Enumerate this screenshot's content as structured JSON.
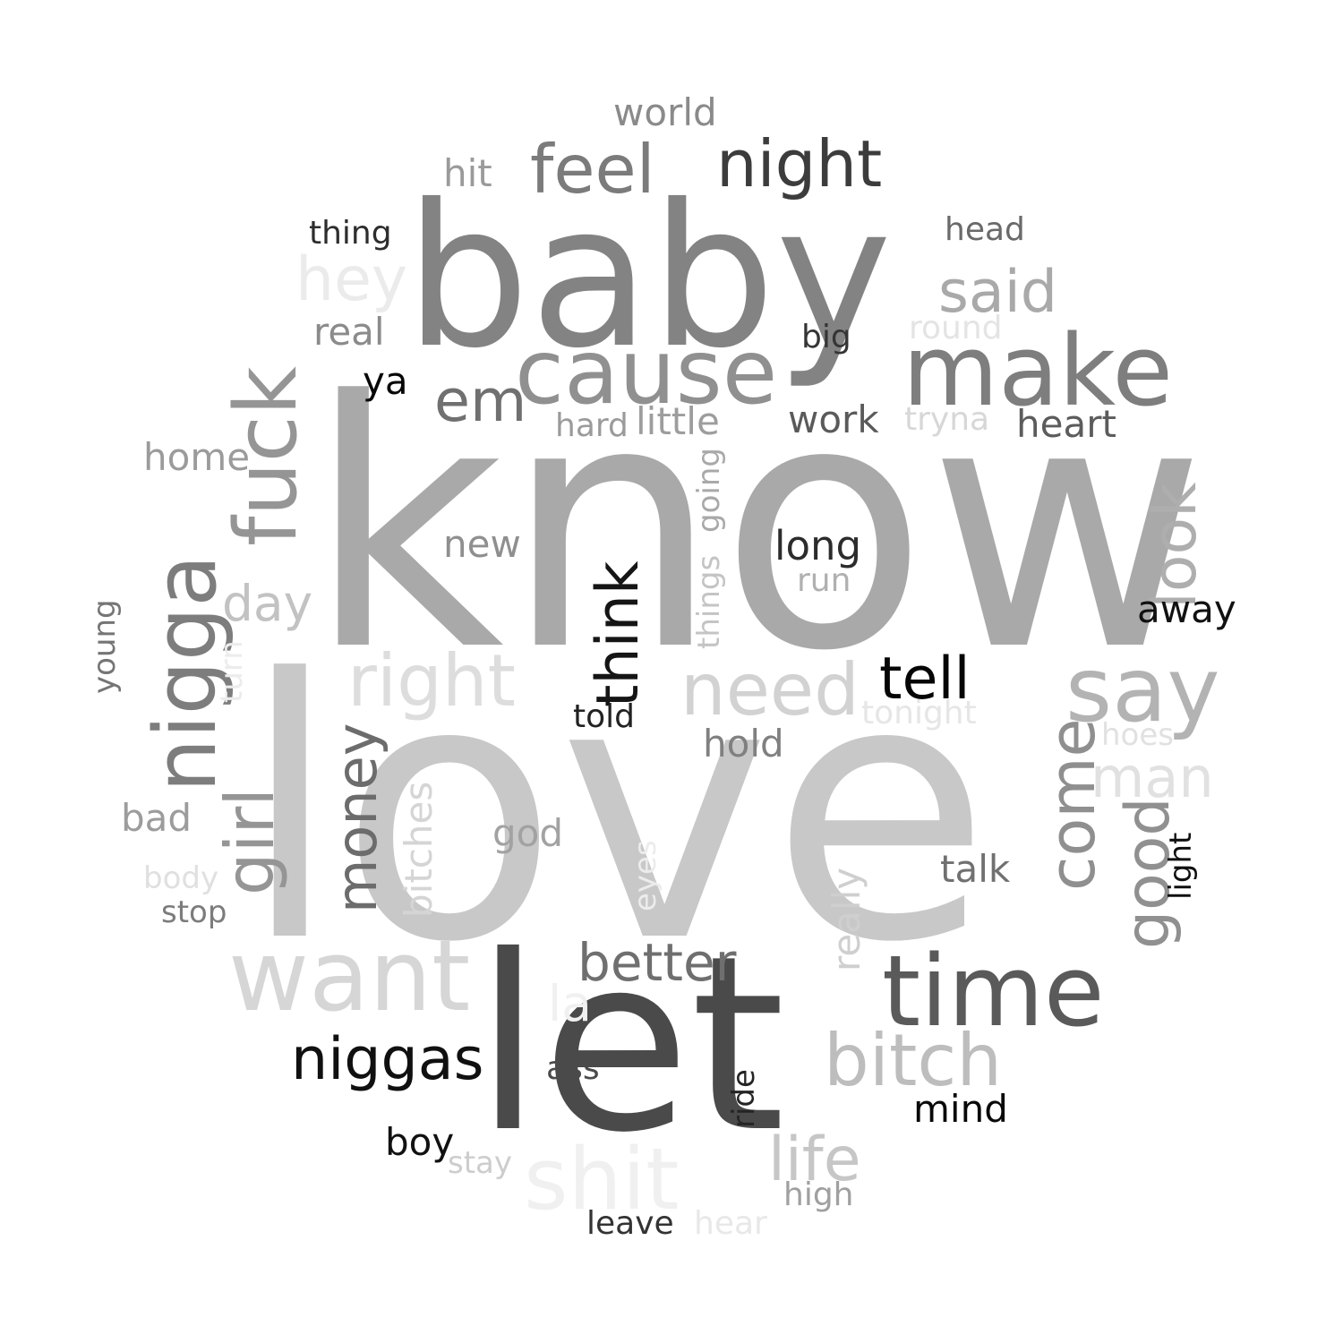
{
  "words": [
    {
      "text": "love",
      "color": "#c8c8c8"
    },
    {
      "text": "know",
      "color": "#a9a9a9"
    },
    {
      "text": "baby",
      "color": "#838383"
    },
    {
      "text": "let",
      "color": "#4a4a4a"
    },
    {
      "text": "cause",
      "color": "#909090"
    },
    {
      "text": "make",
      "color": "#7e7e7e"
    },
    {
      "text": "want",
      "color": "#d6d6d6"
    },
    {
      "text": "time",
      "color": "#5a5a5a"
    },
    {
      "text": "nigga",
      "color": "#7d7d7d"
    },
    {
      "text": "fuck",
      "color": "#959595"
    },
    {
      "text": "say",
      "color": "#b3b3b3"
    },
    {
      "text": "night",
      "color": "#3c3c3c"
    },
    {
      "text": "feel",
      "color": "#7b7b7b"
    },
    {
      "text": "right",
      "color": "#dddddd"
    },
    {
      "text": "need",
      "color": "#d2d2d2"
    },
    {
      "text": "bitch",
      "color": "#bdbdbd"
    },
    {
      "text": "shit",
      "color": "#f0f0f0"
    },
    {
      "text": "girl",
      "color": "#959595"
    },
    {
      "text": "think",
      "color": "#151515"
    },
    {
      "text": "money",
      "color": "#6c6c6c"
    },
    {
      "text": "come",
      "color": "#8f8f8f"
    },
    {
      "text": "niggas",
      "color": "#101010"
    },
    {
      "text": "tell",
      "color": "#050505"
    },
    {
      "text": "said",
      "color": "#a9a9a9"
    },
    {
      "text": "hey",
      "color": "#ebebeb"
    },
    {
      "text": "em",
      "color": "#707070"
    },
    {
      "text": "good",
      "color": "#909090"
    },
    {
      "text": "look",
      "color": "#aeaeae"
    },
    {
      "text": "life",
      "color": "#c6c6c6"
    },
    {
      "text": "man",
      "color": "#e1e1e1"
    },
    {
      "text": "day",
      "color": "#c2c2c2"
    },
    {
      "text": "better",
      "color": "#6f6f6f"
    },
    {
      "text": "world",
      "color": "#8a8a8a"
    },
    {
      "text": "hit",
      "color": "#9a9a9a"
    },
    {
      "text": "thing",
      "color": "#2d2d2d"
    },
    {
      "text": "head",
      "color": "#6a6a6a"
    },
    {
      "text": "real",
      "color": "#8b8b8b"
    },
    {
      "text": "round",
      "color": "#e4e4e4"
    },
    {
      "text": "big",
      "color": "#353535"
    },
    {
      "text": "ya",
      "color": "#070707"
    },
    {
      "text": "hard",
      "color": "#9b9b9b"
    },
    {
      "text": "little",
      "color": "#9d9d9d"
    },
    {
      "text": "work",
      "color": "#5a5a5a"
    },
    {
      "text": "tryna",
      "color": "#d7d7d7"
    },
    {
      "text": "heart",
      "color": "#5c5c5c"
    },
    {
      "text": "home",
      "color": "#9b9b9b"
    },
    {
      "text": "going",
      "color": "#a9a9a9"
    },
    {
      "text": "new",
      "color": "#8f8f8f"
    },
    {
      "text": "long",
      "color": "#2c2c2c"
    },
    {
      "text": "run",
      "color": "#b0b0b0"
    },
    {
      "text": "things",
      "color": "#c4c4c4"
    },
    {
      "text": "away",
      "color": "#111111"
    },
    {
      "text": "young",
      "color": "#757575"
    },
    {
      "text": "turn",
      "color": "#ececec"
    },
    {
      "text": "told",
      "color": "#222222"
    },
    {
      "text": "tonight",
      "color": "#e6e6e6"
    },
    {
      "text": "hold",
      "color": "#808080"
    },
    {
      "text": "hoes",
      "color": "#e1e1e1"
    },
    {
      "text": "bad",
      "color": "#9c9c9c"
    },
    {
      "text": "bitches",
      "color": "#d5d5d5"
    },
    {
      "text": "god",
      "color": "#a2a2a2"
    },
    {
      "text": "eyes",
      "color": "#ececec"
    },
    {
      "text": "really",
      "color": "#cfcfcf"
    },
    {
      "text": "talk",
      "color": "#707070"
    },
    {
      "text": "light",
      "color": "#0f0f0f"
    },
    {
      "text": "body",
      "color": "#e0e0e0"
    },
    {
      "text": "stop",
      "color": "#7c7c7c"
    },
    {
      "text": "la",
      "color": "#f0f0f0"
    },
    {
      "text": "ass",
      "color": "#4a4a4a"
    },
    {
      "text": "ride",
      "color": "#242424"
    },
    {
      "text": "mind",
      "color": "#080808"
    },
    {
      "text": "boy",
      "color": "#111111"
    },
    {
      "text": "stay",
      "color": "#cdcdcd"
    },
    {
      "text": "high",
      "color": "#a0a0a0"
    },
    {
      "text": "leave",
      "color": "#333333"
    },
    {
      "text": "hear",
      "color": "#e8e8e8"
    }
  ]
}
